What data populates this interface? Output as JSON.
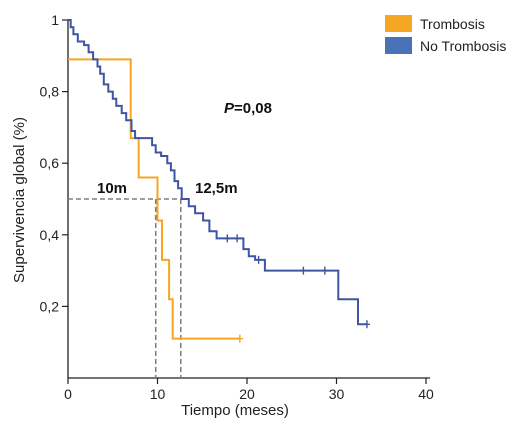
{
  "chart_data": {
    "type": "line",
    "title": "",
    "xlabel": "Tiempo (meses)",
    "ylabel": "Supervivencia global (%)",
    "xlim": [
      0,
      40
    ],
    "ylim": [
      0,
      1
    ],
    "xticks": [
      0,
      10,
      20,
      30,
      40
    ],
    "yticks": [
      0.2,
      0.4,
      0.6,
      0.8,
      1
    ],
    "xtick_labels": [
      "0",
      "10",
      "20",
      "30",
      "40"
    ],
    "ytick_labels": [
      "0,2",
      "0,4",
      "0,6",
      "0,8",
      "1"
    ],
    "grid": false,
    "legend_position": "top-right",
    "p_value": {
      "prefix": "P",
      "value": "=0,08"
    },
    "median_annotations": [
      {
        "label": "10m",
        "x": 9.8,
        "y": 0.5
      },
      {
        "label": "12,5m",
        "x": 12.6,
        "y": 0.5
      }
    ],
    "series": [
      {
        "name": "Trombosis",
        "color": "#F5A623",
        "steps": [
          [
            0,
            0.89
          ],
          [
            7,
            0.89
          ],
          [
            7,
            0.67
          ],
          [
            7.9,
            0.67
          ],
          [
            7.9,
            0.56
          ],
          [
            10,
            0.56
          ],
          [
            10,
            0.44
          ],
          [
            10.5,
            0.44
          ],
          [
            10.5,
            0.33
          ],
          [
            11.3,
            0.33
          ],
          [
            11.3,
            0.22
          ],
          [
            11.7,
            0.22
          ],
          [
            11.7,
            0.11
          ],
          [
            19.2,
            0.11
          ]
        ],
        "censored": [
          [
            19.2,
            0.11
          ]
        ]
      },
      {
        "name": "No Trombosis",
        "color": "#3E55A3",
        "steps": [
          [
            0,
            1
          ],
          [
            0.3,
            1
          ],
          [
            0.3,
            0.98
          ],
          [
            0.6,
            0.98
          ],
          [
            0.6,
            0.96
          ],
          [
            1.1,
            0.96
          ],
          [
            1.1,
            0.94
          ],
          [
            1.8,
            0.94
          ],
          [
            1.8,
            0.93
          ],
          [
            2.3,
            0.93
          ],
          [
            2.3,
            0.91
          ],
          [
            2.8,
            0.91
          ],
          [
            2.8,
            0.89
          ],
          [
            3.3,
            0.89
          ],
          [
            3.3,
            0.87
          ],
          [
            3.6,
            0.87
          ],
          [
            3.6,
            0.85
          ],
          [
            4.0,
            0.85
          ],
          [
            4.0,
            0.82
          ],
          [
            4.5,
            0.82
          ],
          [
            4.5,
            0.8
          ],
          [
            5.0,
            0.8
          ],
          [
            5.0,
            0.78
          ],
          [
            5.4,
            0.78
          ],
          [
            5.4,
            0.76
          ],
          [
            6.0,
            0.76
          ],
          [
            6.0,
            0.74
          ],
          [
            6.5,
            0.74
          ],
          [
            6.5,
            0.72
          ],
          [
            7.1,
            0.72
          ],
          [
            7.1,
            0.69
          ],
          [
            7.5,
            0.69
          ],
          [
            7.5,
            0.67
          ],
          [
            9.4,
            0.67
          ],
          [
            9.4,
            0.65
          ],
          [
            9.8,
            0.65
          ],
          [
            9.8,
            0.63
          ],
          [
            10.4,
            0.63
          ],
          [
            10.4,
            0.62
          ],
          [
            11.1,
            0.62
          ],
          [
            11.1,
            0.6
          ],
          [
            11.5,
            0.6
          ],
          [
            11.5,
            0.58
          ],
          [
            11.9,
            0.58
          ],
          [
            11.9,
            0.55
          ],
          [
            12.3,
            0.55
          ],
          [
            12.3,
            0.53
          ],
          [
            12.7,
            0.53
          ],
          [
            12.7,
            0.5
          ],
          [
            13.5,
            0.5
          ],
          [
            13.5,
            0.48
          ],
          [
            14.2,
            0.48
          ],
          [
            14.2,
            0.46
          ],
          [
            15.1,
            0.46
          ],
          [
            15.1,
            0.44
          ],
          [
            15.8,
            0.44
          ],
          [
            15.8,
            0.41
          ],
          [
            16.6,
            0.41
          ],
          [
            16.6,
            0.39
          ],
          [
            19.6,
            0.39
          ],
          [
            19.6,
            0.36
          ],
          [
            20.2,
            0.36
          ],
          [
            20.2,
            0.34
          ],
          [
            20.9,
            0.34
          ],
          [
            20.9,
            0.33
          ],
          [
            22.0,
            0.33
          ],
          [
            22.0,
            0.3
          ],
          [
            30.2,
            0.3
          ],
          [
            30.2,
            0.22
          ],
          [
            32.4,
            0.22
          ],
          [
            32.4,
            0.15
          ],
          [
            33.4,
            0.15
          ]
        ],
        "censored": [
          [
            17.8,
            0.39
          ],
          [
            18.9,
            0.39
          ],
          [
            21.3,
            0.33
          ],
          [
            26.3,
            0.3
          ],
          [
            28.7,
            0.3
          ],
          [
            33.4,
            0.15
          ]
        ]
      }
    ]
  }
}
